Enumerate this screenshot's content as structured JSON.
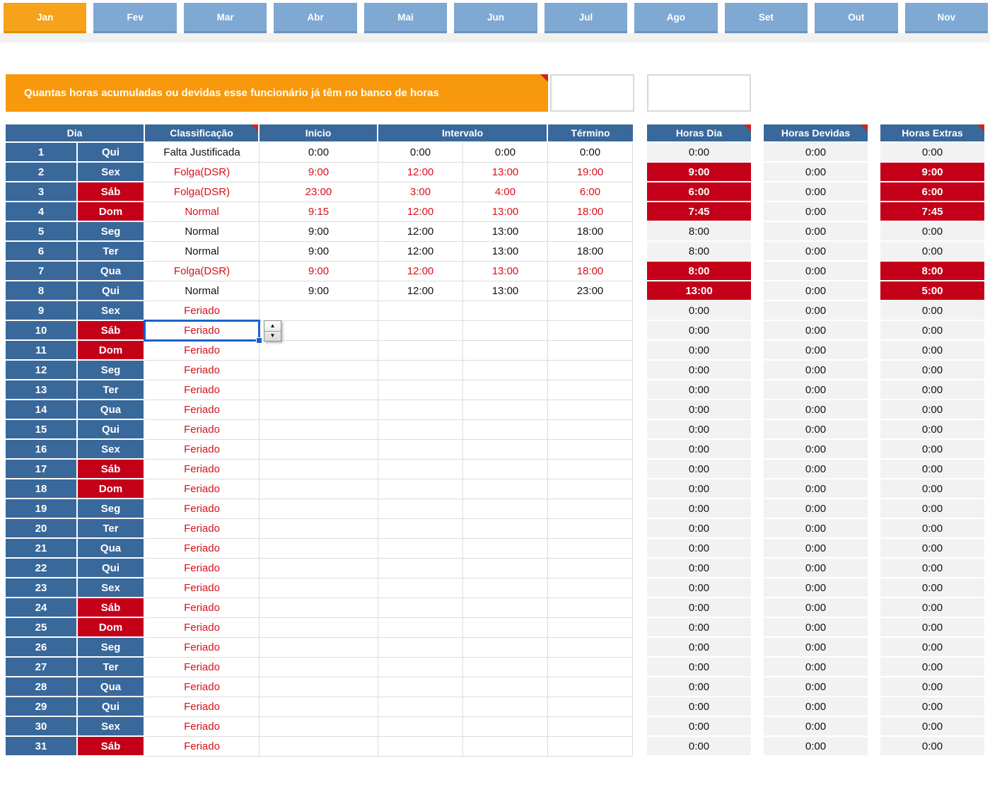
{
  "month_tabs": [
    {
      "label": "Jan",
      "active": true
    },
    {
      "label": "Fev",
      "active": false
    },
    {
      "label": "Mar",
      "active": false
    },
    {
      "label": "Abr",
      "active": false
    },
    {
      "label": "Mai",
      "active": false
    },
    {
      "label": "Jun",
      "active": false
    },
    {
      "label": "Jul",
      "active": false
    },
    {
      "label": "Ago",
      "active": false
    },
    {
      "label": "Set",
      "active": false
    },
    {
      "label": "Out",
      "active": false
    },
    {
      "label": "Nov",
      "active": false
    }
  ],
  "banner": {
    "text": "Quantas horas acumuladas ou devidas esse funcionário já têm no banco de horas",
    "value_cell": "",
    "extra_cell": ""
  },
  "table": {
    "headers": {
      "dia": "Dia",
      "classificacao": "Classificação",
      "inicio": "Início",
      "intervalo": "Intervalo",
      "termino": "Término"
    },
    "side_headers": {
      "horas_dia": "Horas Dia",
      "horas_devidas": "Horas Devidas",
      "horas_extras": "Horas Extras"
    },
    "rows": [
      {
        "day": "1",
        "weekday": "Qui",
        "weekend": false,
        "classificacao": "Falta Justificada",
        "red_text": false,
        "inicio": "0:00",
        "intervalo1": "0:00",
        "intervalo2": "0:00",
        "termino": "0:00",
        "horas_dia": "0:00",
        "horas_dia_hl": false,
        "horas_devidas": "0:00",
        "horas_extras": "0:00",
        "horas_extras_hl": false,
        "selected": false
      },
      {
        "day": "2",
        "weekday": "Sex",
        "weekend": false,
        "classificacao": "Folga(DSR)",
        "red_text": true,
        "inicio": "9:00",
        "intervalo1": "12:00",
        "intervalo2": "13:00",
        "termino": "19:00",
        "horas_dia": "9:00",
        "horas_dia_hl": true,
        "horas_devidas": "0:00",
        "horas_extras": "9:00",
        "horas_extras_hl": true,
        "selected": false
      },
      {
        "day": "3",
        "weekday": "Sáb",
        "weekend": true,
        "classificacao": "Folga(DSR)",
        "red_text": true,
        "inicio": "23:00",
        "intervalo1": "3:00",
        "intervalo2": "4:00",
        "termino": "6:00",
        "horas_dia": "6:00",
        "horas_dia_hl": true,
        "horas_devidas": "0:00",
        "horas_extras": "6:00",
        "horas_extras_hl": true,
        "selected": false
      },
      {
        "day": "4",
        "weekday": "Dom",
        "weekend": true,
        "classificacao": "Normal",
        "red_text": true,
        "inicio": "9:15",
        "intervalo1": "12:00",
        "intervalo2": "13:00",
        "termino": "18:00",
        "horas_dia": "7:45",
        "horas_dia_hl": true,
        "horas_devidas": "0:00",
        "horas_extras": "7:45",
        "horas_extras_hl": true,
        "selected": false
      },
      {
        "day": "5",
        "weekday": "Seg",
        "weekend": false,
        "classificacao": "Normal",
        "red_text": false,
        "inicio": "9:00",
        "intervalo1": "12:00",
        "intervalo2": "13:00",
        "termino": "18:00",
        "horas_dia": "8:00",
        "horas_dia_hl": false,
        "horas_devidas": "0:00",
        "horas_extras": "0:00",
        "horas_extras_hl": false,
        "selected": false
      },
      {
        "day": "6",
        "weekday": "Ter",
        "weekend": false,
        "classificacao": "Normal",
        "red_text": false,
        "inicio": "9:00",
        "intervalo1": "12:00",
        "intervalo2": "13:00",
        "termino": "18:00",
        "horas_dia": "8:00",
        "horas_dia_hl": false,
        "horas_devidas": "0:00",
        "horas_extras": "0:00",
        "horas_extras_hl": false,
        "selected": false
      },
      {
        "day": "7",
        "weekday": "Qua",
        "weekend": false,
        "classificacao": "Folga(DSR)",
        "red_text": true,
        "inicio": "9:00",
        "intervalo1": "12:00",
        "intervalo2": "13:00",
        "termino": "18:00",
        "horas_dia": "8:00",
        "horas_dia_hl": true,
        "horas_devidas": "0:00",
        "horas_extras": "8:00",
        "horas_extras_hl": true,
        "selected": false
      },
      {
        "day": "8",
        "weekday": "Qui",
        "weekend": false,
        "classificacao": "Normal",
        "red_text": false,
        "inicio": "9:00",
        "intervalo1": "12:00",
        "intervalo2": "13:00",
        "termino": "23:00",
        "horas_dia": "13:00",
        "horas_dia_hl": true,
        "horas_devidas": "0:00",
        "horas_extras": "5:00",
        "horas_extras_hl": true,
        "selected": false
      },
      {
        "day": "9",
        "weekday": "Sex",
        "weekend": false,
        "classificacao": "Feriado",
        "red_text": true,
        "inicio": "",
        "intervalo1": "",
        "intervalo2": "",
        "termino": "",
        "horas_dia": "0:00",
        "horas_dia_hl": false,
        "horas_devidas": "0:00",
        "horas_extras": "0:00",
        "horas_extras_hl": false,
        "selected": false
      },
      {
        "day": "10",
        "weekday": "Sáb",
        "weekend": true,
        "classificacao": "Feriado",
        "red_text": true,
        "inicio": "",
        "intervalo1": "",
        "intervalo2": "",
        "termino": "",
        "horas_dia": "0:00",
        "horas_dia_hl": false,
        "horas_devidas": "0:00",
        "horas_extras": "0:00",
        "horas_extras_hl": false,
        "selected": true
      },
      {
        "day": "11",
        "weekday": "Dom",
        "weekend": true,
        "classificacao": "Feriado",
        "red_text": true,
        "inicio": "",
        "intervalo1": "",
        "intervalo2": "",
        "termino": "",
        "horas_dia": "0:00",
        "horas_dia_hl": false,
        "horas_devidas": "0:00",
        "horas_extras": "0:00",
        "horas_extras_hl": false,
        "selected": false
      },
      {
        "day": "12",
        "weekday": "Seg",
        "weekend": false,
        "classificacao": "Feriado",
        "red_text": true,
        "inicio": "",
        "intervalo1": "",
        "intervalo2": "",
        "termino": "",
        "horas_dia": "0:00",
        "horas_dia_hl": false,
        "horas_devidas": "0:00",
        "horas_extras": "0:00",
        "horas_extras_hl": false,
        "selected": false
      },
      {
        "day": "13",
        "weekday": "Ter",
        "weekend": false,
        "classificacao": "Feriado",
        "red_text": true,
        "inicio": "",
        "intervalo1": "",
        "intervalo2": "",
        "termino": "",
        "horas_dia": "0:00",
        "horas_dia_hl": false,
        "horas_devidas": "0:00",
        "horas_extras": "0:00",
        "horas_extras_hl": false,
        "selected": false
      },
      {
        "day": "14",
        "weekday": "Qua",
        "weekend": false,
        "classificacao": "Feriado",
        "red_text": true,
        "inicio": "",
        "intervalo1": "",
        "intervalo2": "",
        "termino": "",
        "horas_dia": "0:00",
        "horas_dia_hl": false,
        "horas_devidas": "0:00",
        "horas_extras": "0:00",
        "horas_extras_hl": false,
        "selected": false
      },
      {
        "day": "15",
        "weekday": "Qui",
        "weekend": false,
        "classificacao": "Feriado",
        "red_text": true,
        "inicio": "",
        "intervalo1": "",
        "intervalo2": "",
        "termino": "",
        "horas_dia": "0:00",
        "horas_dia_hl": false,
        "horas_devidas": "0:00",
        "horas_extras": "0:00",
        "horas_extras_hl": false,
        "selected": false
      },
      {
        "day": "16",
        "weekday": "Sex",
        "weekend": false,
        "classificacao": "Feriado",
        "red_text": true,
        "inicio": "",
        "intervalo1": "",
        "intervalo2": "",
        "termino": "",
        "horas_dia": "0:00",
        "horas_dia_hl": false,
        "horas_devidas": "0:00",
        "horas_extras": "0:00",
        "horas_extras_hl": false,
        "selected": false
      },
      {
        "day": "17",
        "weekday": "Sáb",
        "weekend": true,
        "classificacao": "Feriado",
        "red_text": true,
        "inicio": "",
        "intervalo1": "",
        "intervalo2": "",
        "termino": "",
        "horas_dia": "0:00",
        "horas_dia_hl": false,
        "horas_devidas": "0:00",
        "horas_extras": "0:00",
        "horas_extras_hl": false,
        "selected": false
      },
      {
        "day": "18",
        "weekday": "Dom",
        "weekend": true,
        "classificacao": "Feriado",
        "red_text": true,
        "inicio": "",
        "intervalo1": "",
        "intervalo2": "",
        "termino": "",
        "horas_dia": "0:00",
        "horas_dia_hl": false,
        "horas_devidas": "0:00",
        "horas_extras": "0:00",
        "horas_extras_hl": false,
        "selected": false
      },
      {
        "day": "19",
        "weekday": "Seg",
        "weekend": false,
        "classificacao": "Feriado",
        "red_text": true,
        "inicio": "",
        "intervalo1": "",
        "intervalo2": "",
        "termino": "",
        "horas_dia": "0:00",
        "horas_dia_hl": false,
        "horas_devidas": "0:00",
        "horas_extras": "0:00",
        "horas_extras_hl": false,
        "selected": false
      },
      {
        "day": "20",
        "weekday": "Ter",
        "weekend": false,
        "classificacao": "Feriado",
        "red_text": true,
        "inicio": "",
        "intervalo1": "",
        "intervalo2": "",
        "termino": "",
        "horas_dia": "0:00",
        "horas_dia_hl": false,
        "horas_devidas": "0:00",
        "horas_extras": "0:00",
        "horas_extras_hl": false,
        "selected": false
      },
      {
        "day": "21",
        "weekday": "Qua",
        "weekend": false,
        "classificacao": "Feriado",
        "red_text": true,
        "inicio": "",
        "intervalo1": "",
        "intervalo2": "",
        "termino": "",
        "horas_dia": "0:00",
        "horas_dia_hl": false,
        "horas_devidas": "0:00",
        "horas_extras": "0:00",
        "horas_extras_hl": false,
        "selected": false
      },
      {
        "day": "22",
        "weekday": "Qui",
        "weekend": false,
        "classificacao": "Feriado",
        "red_text": true,
        "inicio": "",
        "intervalo1": "",
        "intervalo2": "",
        "termino": "",
        "horas_dia": "0:00",
        "horas_dia_hl": false,
        "horas_devidas": "0:00",
        "horas_extras": "0:00",
        "horas_extras_hl": false,
        "selected": false
      },
      {
        "day": "23",
        "weekday": "Sex",
        "weekend": false,
        "classificacao": "Feriado",
        "red_text": true,
        "inicio": "",
        "intervalo1": "",
        "intervalo2": "",
        "termino": "",
        "horas_dia": "0:00",
        "horas_dia_hl": false,
        "horas_devidas": "0:00",
        "horas_extras": "0:00",
        "horas_extras_hl": false,
        "selected": false
      },
      {
        "day": "24",
        "weekday": "Sáb",
        "weekend": true,
        "classificacao": "Feriado",
        "red_text": true,
        "inicio": "",
        "intervalo1": "",
        "intervalo2": "",
        "termino": "",
        "horas_dia": "0:00",
        "horas_dia_hl": false,
        "horas_devidas": "0:00",
        "horas_extras": "0:00",
        "horas_extras_hl": false,
        "selected": false
      },
      {
        "day": "25",
        "weekday": "Dom",
        "weekend": true,
        "classificacao": "Feriado",
        "red_text": true,
        "inicio": "",
        "intervalo1": "",
        "intervalo2": "",
        "termino": "",
        "horas_dia": "0:00",
        "horas_dia_hl": false,
        "horas_devidas": "0:00",
        "horas_extras": "0:00",
        "horas_extras_hl": false,
        "selected": false
      },
      {
        "day": "26",
        "weekday": "Seg",
        "weekend": false,
        "classificacao": "Feriado",
        "red_text": true,
        "inicio": "",
        "intervalo1": "",
        "intervalo2": "",
        "termino": "",
        "horas_dia": "0:00",
        "horas_dia_hl": false,
        "horas_devidas": "0:00",
        "horas_extras": "0:00",
        "horas_extras_hl": false,
        "selected": false
      },
      {
        "day": "27",
        "weekday": "Ter",
        "weekend": false,
        "classificacao": "Feriado",
        "red_text": true,
        "inicio": "",
        "intervalo1": "",
        "intervalo2": "",
        "termino": "",
        "horas_dia": "0:00",
        "horas_dia_hl": false,
        "horas_devidas": "0:00",
        "horas_extras": "0:00",
        "horas_extras_hl": false,
        "selected": false
      },
      {
        "day": "28",
        "weekday": "Qua",
        "weekend": false,
        "classificacao": "Feriado",
        "red_text": true,
        "inicio": "",
        "intervalo1": "",
        "intervalo2": "",
        "termino": "",
        "horas_dia": "0:00",
        "horas_dia_hl": false,
        "horas_devidas": "0:00",
        "horas_extras": "0:00",
        "horas_extras_hl": false,
        "selected": false
      },
      {
        "day": "29",
        "weekday": "Qui",
        "weekend": false,
        "classificacao": "Feriado",
        "red_text": true,
        "inicio": "",
        "intervalo1": "",
        "intervalo2": "",
        "termino": "",
        "horas_dia": "0:00",
        "horas_dia_hl": false,
        "horas_devidas": "0:00",
        "horas_extras": "0:00",
        "horas_extras_hl": false,
        "selected": false
      },
      {
        "day": "30",
        "weekday": "Sex",
        "weekend": false,
        "classificacao": "Feriado",
        "red_text": true,
        "inicio": "",
        "intervalo1": "",
        "intervalo2": "",
        "termino": "",
        "horas_dia": "0:00",
        "horas_dia_hl": false,
        "horas_devidas": "0:00",
        "horas_extras": "0:00",
        "horas_extras_hl": false,
        "selected": false
      },
      {
        "day": "31",
        "weekday": "Sáb",
        "weekend": true,
        "classificacao": "Feriado",
        "red_text": true,
        "inicio": "",
        "intervalo1": "",
        "intervalo2": "",
        "termino": "",
        "horas_dia": "0:00",
        "horas_dia_hl": false,
        "horas_devidas": "0:00",
        "horas_extras": "0:00",
        "horas_extras_hl": false,
        "selected": false
      }
    ]
  },
  "spinner": {
    "up_icon": "▲",
    "down_icon": "▼"
  },
  "colors": {
    "tab_active": "#F6A21B",
    "tab_inactive": "#7FA8D3",
    "header_blue": "#39689B",
    "red_background": "#C40019",
    "red_text": "#D8101B",
    "banner_orange": "#F8980C",
    "side_cell_gray": "#F2F2F2",
    "selection_blue": "#1B62C6"
  }
}
